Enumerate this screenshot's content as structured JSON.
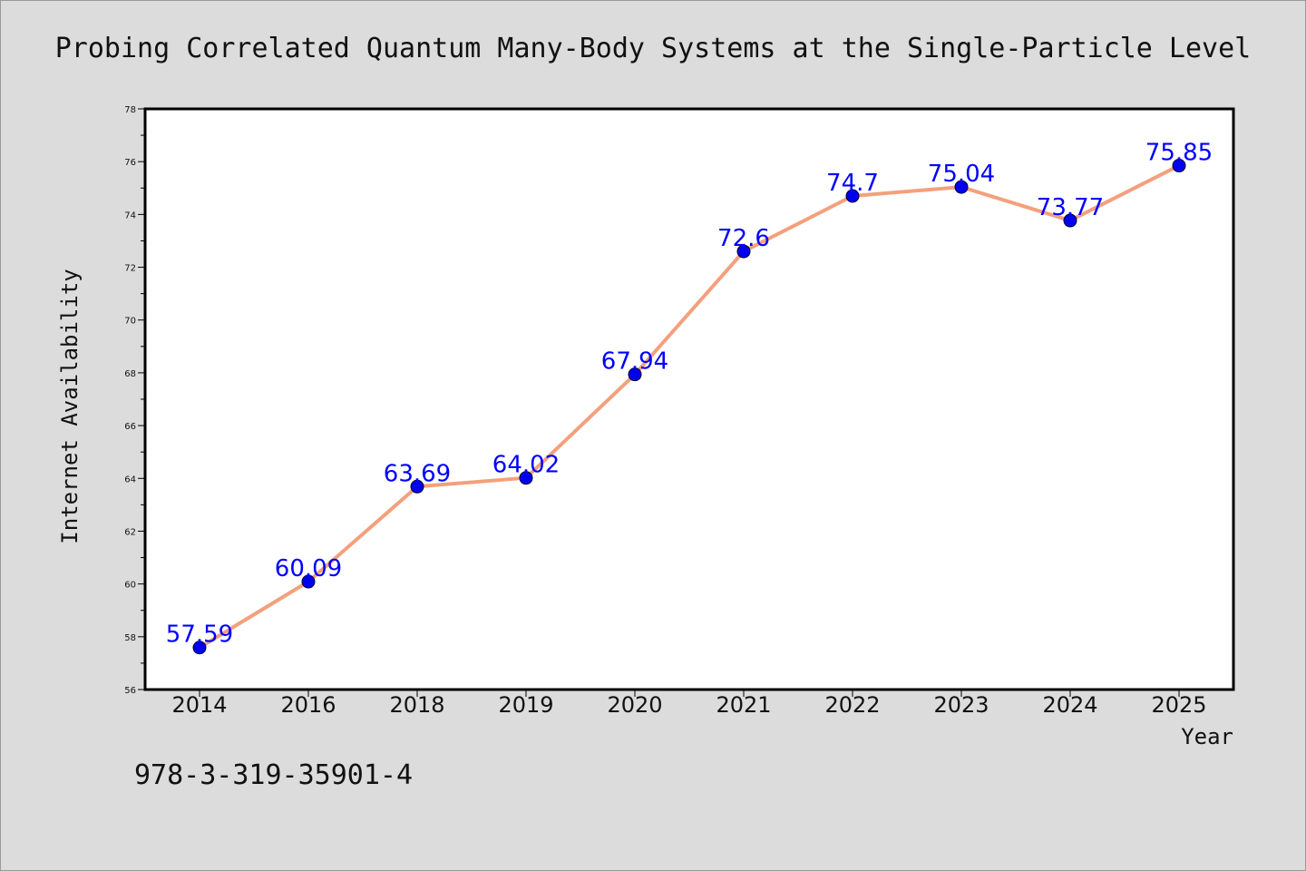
{
  "chart_data": {
    "type": "line",
    "title": "Probing Correlated Quantum Many-Body Systems at the Single-Particle Level",
    "xlabel": "Year",
    "ylabel": "Internet Availability",
    "categories": [
      "2014",
      "2016",
      "2018",
      "2019",
      "2020",
      "2021",
      "2022",
      "2023",
      "2024",
      "2025"
    ],
    "series": [
      {
        "values": [
          57.59,
          60.09,
          63.69,
          64.02,
          67.94,
          72.6,
          74.7,
          75.04,
          73.77,
          75.85
        ],
        "labels": [
          "57.59",
          "60.09",
          "63.69",
          "64.02",
          "67.94",
          "72.6",
          "74.7",
          "75.04",
          "73.77",
          "75.85"
        ]
      }
    ],
    "ylim": [
      56,
      78
    ],
    "yticks": [
      56,
      58,
      60,
      62,
      64,
      66,
      68,
      70,
      72,
      74,
      76,
      78
    ],
    "grid": false,
    "legend": "none",
    "colors": {
      "line": "#f4a07c",
      "marker": "#0000ee",
      "data_label": "#0000ff",
      "plot_background": "#ffffff",
      "page_background": "#dcdcdc"
    }
  },
  "footnote": "978-3-319-35901-4"
}
